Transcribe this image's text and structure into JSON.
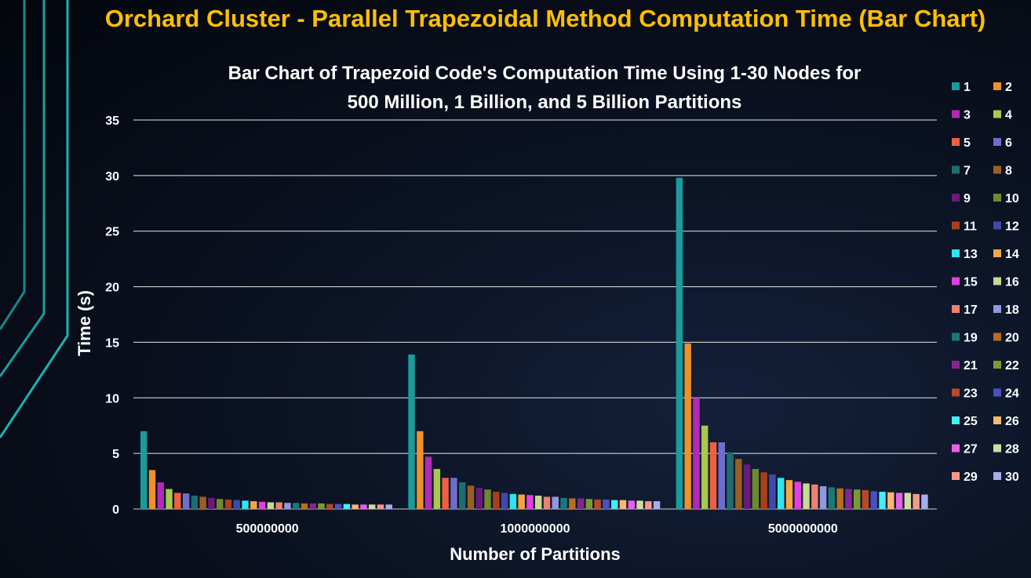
{
  "slide": {
    "title": "Orchard Cluster - Parallel Trapezoidal Method Computation Time (Bar Chart)"
  },
  "chart_data": {
    "type": "bar",
    "title": "Bar Chart of Trapezoid Code's Computation Time Using 1-30 Nodes for 500 Million, 1 Billion, and 5 Billion Partitions",
    "title_lines": [
      "Bar Chart of Trapezoid Code's Computation Time Using 1-30 Nodes for",
      "500 Million, 1 Billion, and 5 Billion Partitions"
    ],
    "xlabel": "Number of Partitions",
    "ylabel": "Time (s)",
    "ylim": [
      0,
      35
    ],
    "yticks": [
      0,
      5,
      10,
      15,
      20,
      25,
      30,
      35
    ],
    "grid": true,
    "legend_position": "right",
    "categories": [
      "500000000",
      "1000000000",
      "5000000000"
    ],
    "series": [
      {
        "name": "1",
        "color": "#1a9c9c",
        "values": [
          7.0,
          13.9,
          29.8
        ]
      },
      {
        "name": "2",
        "color": "#f0902a",
        "values": [
          3.5,
          7.0,
          14.9
        ]
      },
      {
        "name": "3",
        "color": "#b22ab5",
        "values": [
          2.4,
          4.7,
          10.0
        ]
      },
      {
        "name": "4",
        "color": "#a8c850",
        "values": [
          1.8,
          3.6,
          7.5
        ]
      },
      {
        "name": "5",
        "color": "#ee6040",
        "values": [
          1.45,
          2.8,
          6.0
        ]
      },
      {
        "name": "6",
        "color": "#6c70cc",
        "values": [
          1.4,
          2.8,
          6.0
        ]
      },
      {
        "name": "7",
        "color": "#1e6e6e",
        "values": [
          1.2,
          2.4,
          5.1
        ]
      },
      {
        "name": "8",
        "color": "#9a6020",
        "values": [
          1.1,
          2.1,
          4.5
        ]
      },
      {
        "name": "9",
        "color": "#6a1a78",
        "values": [
          1.0,
          1.9,
          4.0
        ]
      },
      {
        "name": "10",
        "color": "#6e8a2a",
        "values": [
          0.9,
          1.75,
          3.6
        ]
      },
      {
        "name": "11",
        "color": "#a8401a",
        "values": [
          0.85,
          1.55,
          3.3
        ]
      },
      {
        "name": "12",
        "color": "#3e4aa8",
        "values": [
          0.8,
          1.45,
          3.1
        ]
      },
      {
        "name": "13",
        "color": "#2ee6f0",
        "values": [
          0.75,
          1.35,
          2.8
        ]
      },
      {
        "name": "14",
        "color": "#f4a640",
        "values": [
          0.7,
          1.3,
          2.6
        ]
      },
      {
        "name": "15",
        "color": "#e040e0",
        "values": [
          0.65,
          1.25,
          2.45
        ]
      },
      {
        "name": "16",
        "color": "#c8d890",
        "values": [
          0.6,
          1.2,
          2.3
        ]
      },
      {
        "name": "17",
        "color": "#f08070",
        "values": [
          0.6,
          1.1,
          2.2
        ]
      },
      {
        "name": "18",
        "color": "#9098e0",
        "values": [
          0.55,
          1.1,
          2.05
        ]
      },
      {
        "name": "19",
        "color": "#1a7878",
        "values": [
          0.55,
          1.0,
          1.95
        ]
      },
      {
        "name": "20",
        "color": "#b86e1e",
        "values": [
          0.5,
          0.95,
          1.85
        ]
      },
      {
        "name": "21",
        "color": "#84268e",
        "values": [
          0.5,
          0.95,
          1.8
        ]
      },
      {
        "name": "22",
        "color": "#7c9a34",
        "values": [
          0.5,
          0.9,
          1.75
        ]
      },
      {
        "name": "23",
        "color": "#b8482a",
        "values": [
          0.45,
          0.85,
          1.7
        ]
      },
      {
        "name": "24",
        "color": "#4a50c0",
        "values": [
          0.45,
          0.85,
          1.6
        ]
      },
      {
        "name": "25",
        "color": "#40f0f8",
        "values": [
          0.45,
          0.8,
          1.55
        ]
      },
      {
        "name": "26",
        "color": "#f8b870",
        "values": [
          0.4,
          0.8,
          1.5
        ]
      },
      {
        "name": "27",
        "color": "#e860e8",
        "values": [
          0.4,
          0.75,
          1.45
        ]
      },
      {
        "name": "28",
        "color": "#d0dca0",
        "values": [
          0.4,
          0.75,
          1.45
        ]
      },
      {
        "name": "29",
        "color": "#f49a8a",
        "values": [
          0.4,
          0.7,
          1.35
        ]
      },
      {
        "name": "30",
        "color": "#a8acec",
        "values": [
          0.4,
          0.7,
          1.3
        ]
      }
    ]
  }
}
